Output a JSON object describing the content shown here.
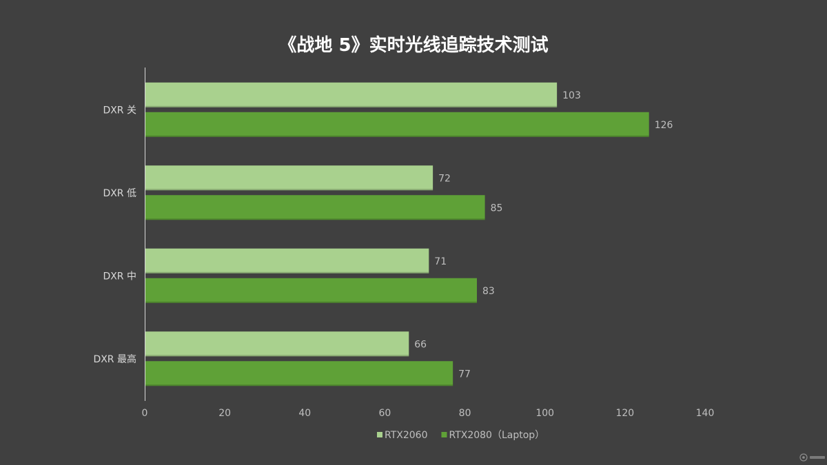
{
  "chart_data": {
    "type": "bar",
    "orientation": "horizontal",
    "title": "《战地 5》实时光线追踪技术测试",
    "categories": [
      "DXR 关",
      "DXR 低",
      "DXR 中",
      "DXR 最高"
    ],
    "series": [
      {
        "name": "RTX2060",
        "values": [
          103,
          72,
          71,
          66
        ],
        "color": "#a9d18e"
      },
      {
        "name": "RTX2080（Laptop）",
        "values": [
          126,
          85,
          83,
          77
        ],
        "color": "#5fa137"
      }
    ],
    "xlim": [
      0,
      140
    ],
    "xticks": [
      0,
      20,
      40,
      60,
      80,
      100,
      120,
      140
    ],
    "grid": false,
    "data_labels": true,
    "legend_position": "bottom"
  },
  "colors": {
    "background": "#404040",
    "axis_line": "#d9d9d9",
    "title": "#ffffff",
    "label_text": "#bfbfbf"
  },
  "watermark_icon": "watermark-logo-icon"
}
